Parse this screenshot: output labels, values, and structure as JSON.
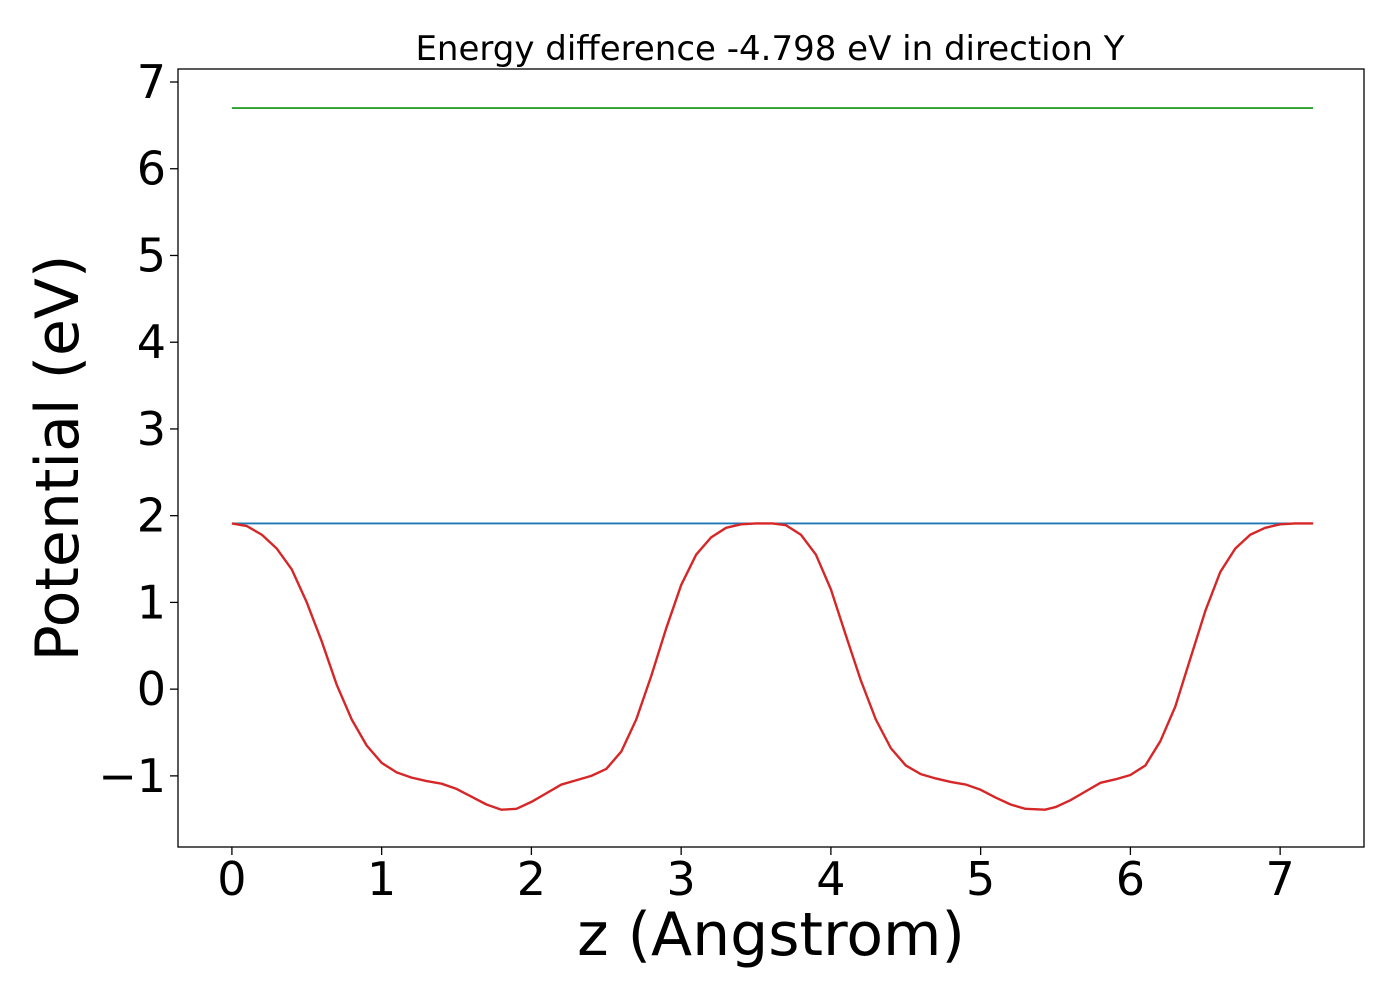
{
  "chart_data": {
    "type": "line",
    "title": "Energy difference -4.798 eV in direction Y",
    "xlabel": "z (Angstrom)",
    "ylabel": "Potential (eV)",
    "xlim": [
      -0.36,
      7.56
    ],
    "ylim": [
      -1.82,
      7.15
    ],
    "xticks": [
      0,
      1,
      2,
      3,
      4,
      5,
      6,
      7
    ],
    "xtick_labels": [
      "0",
      "1",
      "2",
      "3",
      "4",
      "5",
      "6",
      "7"
    ],
    "yticks": [
      -1,
      0,
      1,
      2,
      3,
      4,
      5,
      6,
      7
    ],
    "ytick_labels": [
      "−1",
      "0",
      "1",
      "2",
      "3",
      "4",
      "5",
      "6",
      "7"
    ],
    "grid": false,
    "legend": false,
    "series": [
      {
        "color": "#2ca02c",
        "x": [
          0,
          7.22
        ],
        "y": [
          6.7,
          6.7
        ]
      },
      {
        "color": "#1f77b4",
        "x": [
          0,
          7.22
        ],
        "y": [
          1.91,
          1.91
        ]
      },
      {
        "color": "#d62728",
        "x": [
          0,
          0.1,
          0.2,
          0.3,
          0.4,
          0.5,
          0.6,
          0.7,
          0.8,
          0.9,
          1.0,
          1.1,
          1.2,
          1.3,
          1.4,
          1.5,
          1.6,
          1.7,
          1.8,
          1.9,
          2.0,
          2.1,
          2.2,
          2.3,
          2.4,
          2.5,
          2.6,
          2.7,
          2.8,
          2.9,
          3.0,
          3.1,
          3.2,
          3.3,
          3.4,
          3.5,
          3.61,
          3.7,
          3.8,
          3.9,
          4.0,
          4.1,
          4.2,
          4.3,
          4.4,
          4.5,
          4.6,
          4.7,
          4.8,
          4.9,
          5.0,
          5.1,
          5.2,
          5.3,
          5.43,
          5.5,
          5.6,
          5.7,
          5.8,
          5.9,
          6.0,
          6.1,
          6.2,
          6.3,
          6.4,
          6.5,
          6.6,
          6.7,
          6.8,
          6.9,
          7.0,
          7.1,
          7.22
        ],
        "y": [
          1.91,
          1.88,
          1.78,
          1.62,
          1.38,
          1.0,
          0.55,
          0.05,
          -0.35,
          -0.65,
          -0.85,
          -0.96,
          -1.02,
          -1.06,
          -1.09,
          -1.15,
          -1.24,
          -1.33,
          -1.39,
          -1.38,
          -1.3,
          -1.2,
          -1.1,
          -1.05,
          -1.0,
          -0.92,
          -0.72,
          -0.35,
          0.15,
          0.7,
          1.2,
          1.55,
          1.75,
          1.86,
          1.9,
          1.91,
          1.91,
          1.89,
          1.78,
          1.55,
          1.15,
          0.62,
          0.1,
          -0.35,
          -0.68,
          -0.88,
          -0.98,
          -1.03,
          -1.07,
          -1.1,
          -1.16,
          -1.25,
          -1.33,
          -1.38,
          -1.39,
          -1.36,
          -1.28,
          -1.18,
          -1.08,
          -1.04,
          -0.99,
          -0.88,
          -0.6,
          -0.2,
          0.35,
          0.9,
          1.35,
          1.62,
          1.78,
          1.86,
          1.9,
          1.91,
          1.91
        ]
      }
    ]
  }
}
